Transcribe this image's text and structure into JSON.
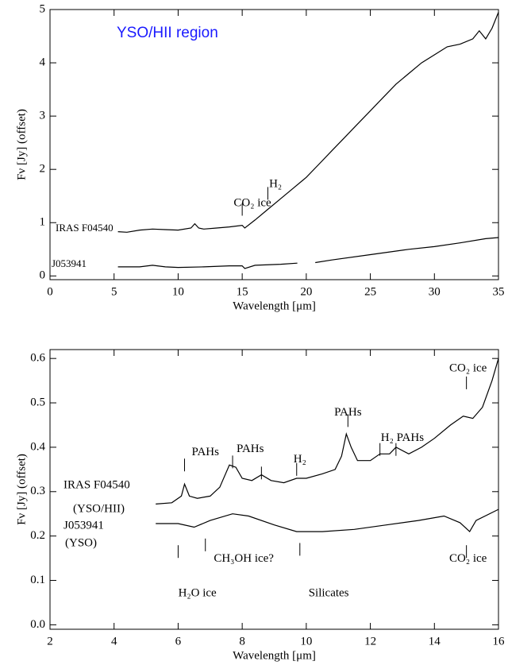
{
  "chart_data": [
    {
      "type": "line",
      "title": "YSO/HII region",
      "title_color": "#1a1aff",
      "xlabel": "Wavelength [μm]",
      "ylabel": "Fν [Jy] (offset)",
      "xlim": [
        0,
        35
      ],
      "ylim": [
        -0.07,
        5
      ],
      "xticks": [
        0,
        5,
        10,
        15,
        20,
        25,
        30,
        35
      ],
      "yticks": [
        0,
        1,
        2,
        3,
        4,
        5
      ],
      "series": [
        {
          "name": "IRAS F04540",
          "color": "#000000",
          "x": [
            5.3,
            6,
            7,
            8,
            9,
            10,
            11,
            11.3,
            11.6,
            12,
            13,
            14,
            15,
            15.2,
            16,
            17,
            18,
            19,
            20,
            21,
            22,
            23,
            24,
            25,
            26,
            27,
            28,
            29,
            30,
            31,
            32,
            33,
            33.5,
            34,
            34.5,
            35
          ],
          "values": [
            0.83,
            0.82,
            0.86,
            0.88,
            0.87,
            0.86,
            0.9,
            0.98,
            0.9,
            0.88,
            0.9,
            0.92,
            0.95,
            0.9,
            1.05,
            1.25,
            1.45,
            1.65,
            1.85,
            2.1,
            2.35,
            2.6,
            2.85,
            3.1,
            3.35,
            3.6,
            3.8,
            4.0,
            4.15,
            4.3,
            4.35,
            4.45,
            4.6,
            4.45,
            4.65,
            4.95
          ]
        },
        {
          "name": "J053941",
          "color": "#000000",
          "x": [
            5.3,
            7,
            8,
            9,
            10,
            12,
            14,
            15,
            15.2,
            16,
            18,
            19.3,
            20,
            20.7,
            22,
            25,
            28,
            30,
            32,
            34,
            35
          ],
          "values": [
            0.17,
            0.17,
            0.2,
            0.17,
            0.16,
            0.17,
            0.19,
            0.19,
            0.14,
            0.2,
            0.22,
            0.24,
            null,
            0.25,
            0.3,
            0.4,
            0.5,
            0.55,
            0.62,
            0.7,
            0.72
          ]
        }
      ],
      "features": [
        {
          "x": 15,
          "y": 1.25
        },
        {
          "x": 17,
          "y": 1.55
        }
      ],
      "annotations": [
        {
          "text": "CO₂ ice",
          "x": 15.8,
          "y": 1.36
        },
        {
          "text": "H₂",
          "x": 17.6,
          "y": 1.72
        }
      ]
    },
    {
      "type": "line",
      "xlabel": "Wavelength [μm]",
      "ylabel": "Fν [Jy] (offset)",
      "xlim": [
        2,
        16
      ],
      "ylim": [
        -0.01,
        0.62
      ],
      "xticks": [
        2,
        4,
        6,
        8,
        10,
        12,
        14,
        16
      ],
      "yticks": [
        {
          "value": 0,
          "label": "0.0"
        },
        0.1,
        0.2,
        0.3,
        0.4,
        0.5,
        0.6
      ],
      "series": [
        {
          "name": "IRAS F04540",
          "note": "(YSO/HII)",
          "color": "#000000",
          "x": [
            5.3,
            5.8,
            6.1,
            6.2,
            6.35,
            6.6,
            7,
            7.3,
            7.6,
            7.8,
            8.0,
            8.3,
            8.6,
            8.9,
            9.3,
            9.7,
            10,
            10.5,
            10.9,
            11.1,
            11.25,
            11.4,
            11.6,
            12,
            12.3,
            12.6,
            12.8,
            13.2,
            13.6,
            14,
            14.5,
            14.9,
            15.2,
            15.5,
            15.8,
            16
          ],
          "values": [
            0.272,
            0.275,
            0.29,
            0.317,
            0.29,
            0.285,
            0.29,
            0.31,
            0.36,
            0.355,
            0.33,
            0.325,
            0.338,
            0.325,
            0.32,
            0.33,
            0.33,
            0.34,
            0.35,
            0.38,
            0.43,
            0.4,
            0.37,
            0.37,
            0.385,
            0.385,
            0.4,
            0.385,
            0.4,
            0.42,
            0.45,
            0.47,
            0.465,
            0.49,
            0.55,
            0.6
          ]
        },
        {
          "name": "J053941",
          "note": "(YSO)",
          "color": "#000000",
          "x": [
            5.3,
            6,
            6.5,
            7,
            7.7,
            8.2,
            9,
            9.7,
            10.5,
            11.5,
            12.5,
            13.5,
            14.3,
            14.8,
            15.1,
            15.3,
            16
          ],
          "values": [
            0.228,
            0.228,
            0.22,
            0.235,
            0.25,
            0.245,
            0.225,
            0.21,
            0.21,
            0.215,
            0.225,
            0.235,
            0.245,
            0.23,
            0.21,
            0.235,
            0.26
          ]
        }
      ],
      "features": [
        {
          "x": 6.2,
          "y": 0.36
        },
        {
          "x": 7.7,
          "y": 0.367
        },
        {
          "x": 8.6,
          "y": 0.342
        },
        {
          "x": 9.7,
          "y": 0.35
        },
        {
          "x": 11.3,
          "y": 0.46
        },
        {
          "x": 12.3,
          "y": 0.395
        },
        {
          "x": 12.8,
          "y": 0.395
        },
        {
          "x": 15,
          "y": 0.545
        },
        {
          "x": 6.0,
          "y": 0.165
        },
        {
          "x": 6.85,
          "y": 0.18
        },
        {
          "x": 9.8,
          "y": 0.17
        },
        {
          "x": 15,
          "y": 0.165
        }
      ],
      "annotations": [
        {
          "text": "PAHs",
          "x": 6.85,
          "y": 0.388
        },
        {
          "text": "PAHs",
          "x": 8.25,
          "y": 0.395
        },
        {
          "text": "H₂",
          "x": 9.8,
          "y": 0.372
        },
        {
          "text": "PAHs",
          "x": 11.3,
          "y": 0.478
        },
        {
          "text": "H₂ PAHs",
          "x": 13.0,
          "y": 0.42
        },
        {
          "text": "CO₂ ice",
          "x": 15.05,
          "y": 0.577
        },
        {
          "text": "CH₃OH ice?",
          "x": 8.05,
          "y": 0.148
        },
        {
          "text": "H₂O ice",
          "x": 6.6,
          "y": 0.07
        },
        {
          "text": "Silicates",
          "x": 10.7,
          "y": 0.07
        },
        {
          "text": "CO₂ ice",
          "x": 15.05,
          "y": 0.148
        }
      ]
    }
  ]
}
